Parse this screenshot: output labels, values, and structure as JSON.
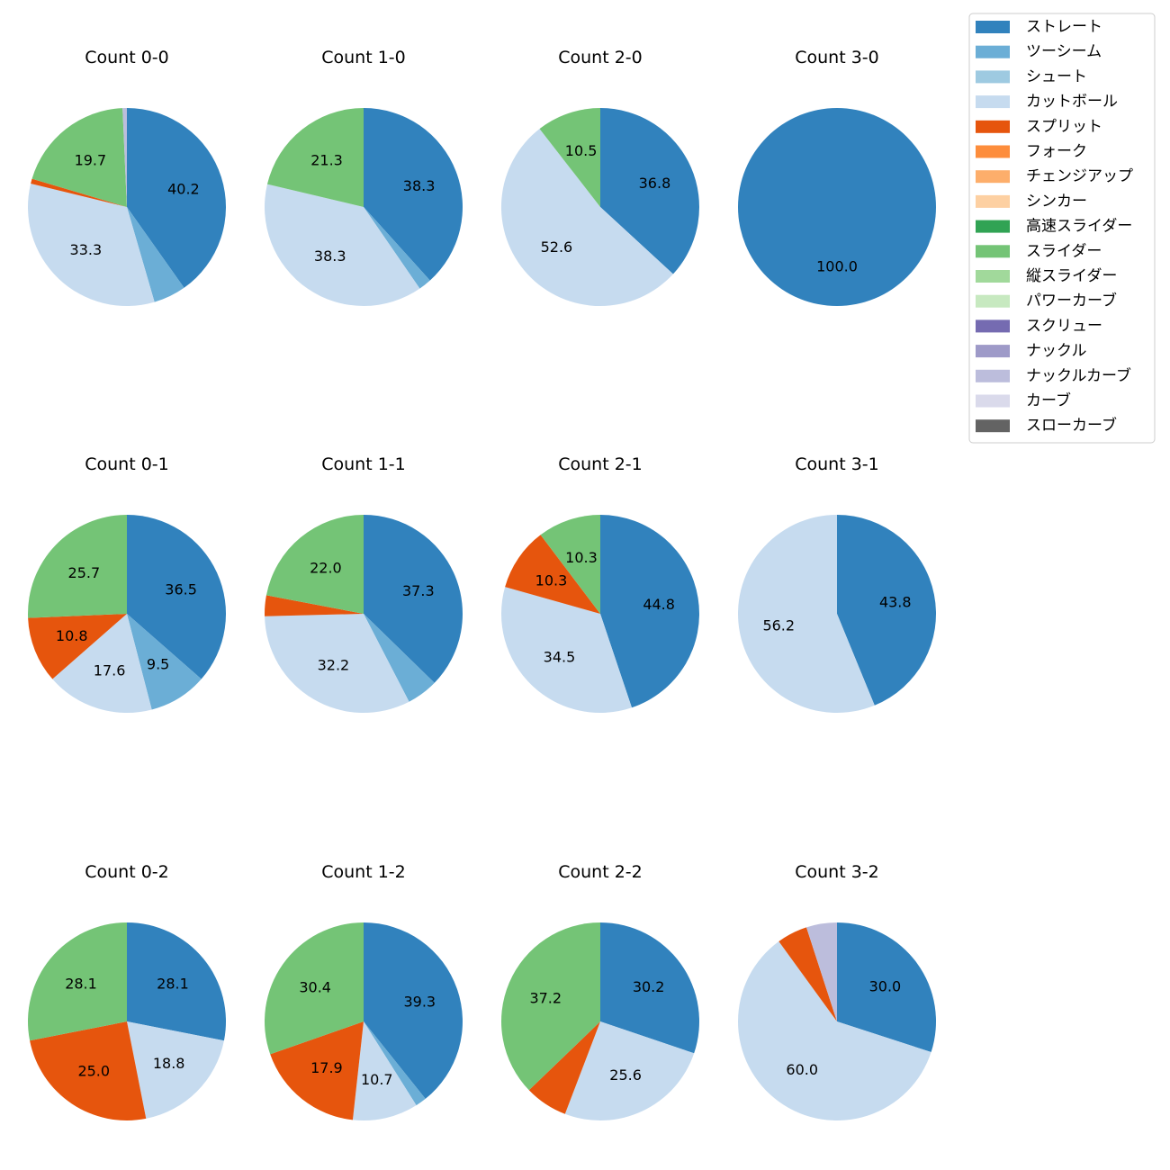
{
  "chart_data": {
    "type": "pie",
    "legend_position": "top-right",
    "categories": [
      {
        "name": "ストレート",
        "color": "#3182bd"
      },
      {
        "name": "ツーシーム",
        "color": "#6baed6"
      },
      {
        "name": "シュート",
        "color": "#9ecae1"
      },
      {
        "name": "カットボール",
        "color": "#c6dbef"
      },
      {
        "name": "スプリット",
        "color": "#e6550d"
      },
      {
        "name": "フォーク",
        "color": "#fd8d3c"
      },
      {
        "name": "チェンジアップ",
        "color": "#fdae6b"
      },
      {
        "name": "シンカー",
        "color": "#fdd0a2"
      },
      {
        "name": "高速スライダー",
        "color": "#31a354"
      },
      {
        "name": "スライダー",
        "color": "#74c476"
      },
      {
        "name": "縦スライダー",
        "color": "#a1d99b"
      },
      {
        "name": "パワーカーブ",
        "color": "#c7e9c0"
      },
      {
        "name": "スクリュー",
        "color": "#756bb1"
      },
      {
        "name": "ナックル",
        "color": "#9e9ac8"
      },
      {
        "name": "ナックルカーブ",
        "color": "#bcbddc"
      },
      {
        "name": "カーブ",
        "color": "#dadaeb"
      },
      {
        "name": "スローカーブ",
        "color": "#636363"
      }
    ],
    "pies": [
      {
        "title": "Count 0-0",
        "slices": [
          {
            "name": "ストレート",
            "value": 40.2,
            "label": "40.2"
          },
          {
            "name": "ツーシーム",
            "value": 5.3,
            "label": ""
          },
          {
            "name": "カットボール",
            "value": 33.3,
            "label": "33.3"
          },
          {
            "name": "スプリット",
            "value": 0.8,
            "label": ""
          },
          {
            "name": "スライダー",
            "value": 19.7,
            "label": "19.7"
          },
          {
            "name": "ナックルカーブ",
            "value": 0.7,
            "label": ""
          }
        ]
      },
      {
        "title": "Count 1-0",
        "slices": [
          {
            "name": "ストレート",
            "value": 38.3,
            "label": "38.3"
          },
          {
            "name": "ツーシーム",
            "value": 2.1,
            "label": ""
          },
          {
            "name": "カットボール",
            "value": 38.3,
            "label": "38.3"
          },
          {
            "name": "スライダー",
            "value": 21.3,
            "label": "21.3"
          }
        ]
      },
      {
        "title": "Count 2-0",
        "slices": [
          {
            "name": "ストレート",
            "value": 36.8,
            "label": "36.8"
          },
          {
            "name": "カットボール",
            "value": 52.6,
            "label": "52.6"
          },
          {
            "name": "スライダー",
            "value": 10.5,
            "label": "10.5"
          }
        ]
      },
      {
        "title": "Count 3-0",
        "slices": [
          {
            "name": "ストレート",
            "value": 100.0,
            "label": "100.0"
          }
        ]
      },
      {
        "title": "Count 0-1",
        "slices": [
          {
            "name": "ストレート",
            "value": 36.5,
            "label": "36.5"
          },
          {
            "name": "ツーシーム",
            "value": 9.5,
            "label": "9.5"
          },
          {
            "name": "カットボール",
            "value": 17.6,
            "label": "17.6"
          },
          {
            "name": "スプリット",
            "value": 10.8,
            "label": "10.8"
          },
          {
            "name": "スライダー",
            "value": 25.7,
            "label": "25.7"
          }
        ]
      },
      {
        "title": "Count 1-1",
        "slices": [
          {
            "name": "ストレート",
            "value": 37.3,
            "label": "37.3"
          },
          {
            "name": "ツーシーム",
            "value": 5.1,
            "label": ""
          },
          {
            "name": "カットボール",
            "value": 32.2,
            "label": "32.2"
          },
          {
            "name": "スプリット",
            "value": 3.4,
            "label": ""
          },
          {
            "name": "スライダー",
            "value": 22.0,
            "label": "22.0"
          }
        ]
      },
      {
        "title": "Count 2-1",
        "slices": [
          {
            "name": "ストレート",
            "value": 44.8,
            "label": "44.8"
          },
          {
            "name": "カットボール",
            "value": 34.5,
            "label": "34.5"
          },
          {
            "name": "スプリット",
            "value": 10.3,
            "label": "10.3"
          },
          {
            "name": "スライダー",
            "value": 10.3,
            "label": "10.3"
          }
        ]
      },
      {
        "title": "Count 3-1",
        "slices": [
          {
            "name": "ストレート",
            "value": 43.8,
            "label": "43.8"
          },
          {
            "name": "カットボール",
            "value": 56.2,
            "label": "56.2"
          }
        ]
      },
      {
        "title": "Count 0-2",
        "slices": [
          {
            "name": "ストレート",
            "value": 28.1,
            "label": "28.1"
          },
          {
            "name": "カットボール",
            "value": 18.8,
            "label": "18.8"
          },
          {
            "name": "スプリット",
            "value": 25.0,
            "label": "25.0"
          },
          {
            "name": "スライダー",
            "value": 28.1,
            "label": "28.1"
          }
        ]
      },
      {
        "title": "Count 1-2",
        "slices": [
          {
            "name": "ストレート",
            "value": 39.3,
            "label": "39.3"
          },
          {
            "name": "ツーシーム",
            "value": 1.8,
            "label": ""
          },
          {
            "name": "カットボール",
            "value": 10.7,
            "label": "10.7"
          },
          {
            "name": "スプリット",
            "value": 17.9,
            "label": "17.9"
          },
          {
            "name": "スライダー",
            "value": 30.4,
            "label": "30.4"
          }
        ]
      },
      {
        "title": "Count 2-2",
        "slices": [
          {
            "name": "ストレート",
            "value": 30.2,
            "label": "30.2"
          },
          {
            "name": "カットボール",
            "value": 25.6,
            "label": "25.6"
          },
          {
            "name": "スプリット",
            "value": 7.0,
            "label": ""
          },
          {
            "name": "スライダー",
            "value": 37.2,
            "label": "37.2"
          }
        ]
      },
      {
        "title": "Count 3-2",
        "slices": [
          {
            "name": "ストレート",
            "value": 30.0,
            "label": "30.0"
          },
          {
            "name": "カットボール",
            "value": 60.0,
            "label": "60.0"
          },
          {
            "name": "スプリット",
            "value": 5.0,
            "label": ""
          },
          {
            "name": "ナックルカーブ",
            "value": 5.0,
            "label": ""
          }
        ]
      }
    ]
  }
}
